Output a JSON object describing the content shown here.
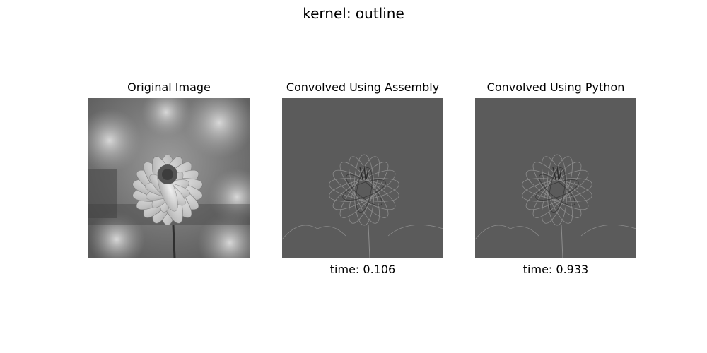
{
  "figure": {
    "title": "kernel: outline",
    "panels": [
      {
        "title": "Original Image",
        "caption": "",
        "variant": "original"
      },
      {
        "title": "Convolved Using Assembly",
        "caption": "time: 0.106",
        "variant": "edges"
      },
      {
        "title": "Convolved Using Python",
        "caption": "time: 0.933",
        "variant": "edges"
      }
    ]
  },
  "colors": {
    "original_bg": "#8a8a8a",
    "edge_bg": "#5b5b5b",
    "edge_line": "#8d8d8d",
    "edge_dark": "#3a3a3a"
  }
}
